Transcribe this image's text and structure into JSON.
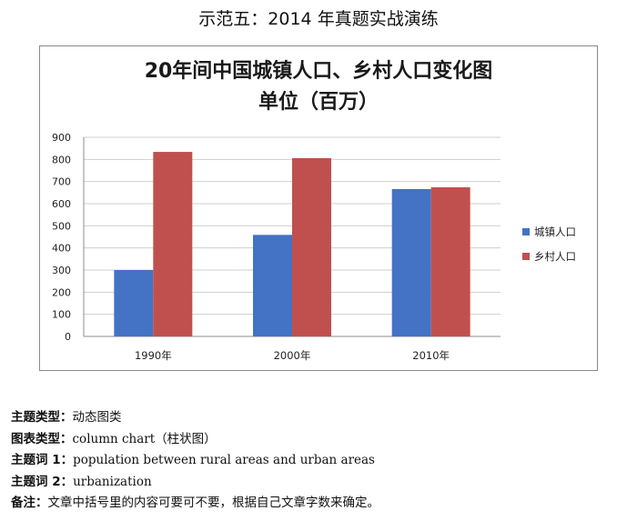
{
  "page_heading": "示范五：2014 年真题实战演练",
  "chart_data": {
    "type": "bar",
    "title": "20年间中国城镇人口、乡村人口变化图",
    "subtitle": "单位（百万）",
    "categories": [
      "1990年",
      "2000年",
      "2010年"
    ],
    "series": [
      {
        "name": "城镇人口",
        "color": "#4472C4",
        "values": [
          300,
          459,
          666
        ]
      },
      {
        "name": "乡村人口",
        "color": "#C0504D",
        "values": [
          834,
          806,
          674
        ]
      }
    ],
    "ylim": [
      0,
      900
    ],
    "yticks": [
      0,
      100,
      200,
      300,
      400,
      500,
      600,
      700,
      800,
      900
    ],
    "grid": true,
    "legend": "right"
  },
  "notes": [
    {
      "key": "主题类型：",
      "value": "动态图类"
    },
    {
      "key": "图表类型：",
      "value": "column chart（柱状图）"
    },
    {
      "key": "主题词 1：",
      "value": "population between rural areas and urban areas"
    },
    {
      "key": "主题词 2：",
      "value": "urbanization"
    },
    {
      "key": "备注：",
      "value": "文章中括号里的内容可要可不要，根据自己文章字数来确定。"
    }
  ]
}
